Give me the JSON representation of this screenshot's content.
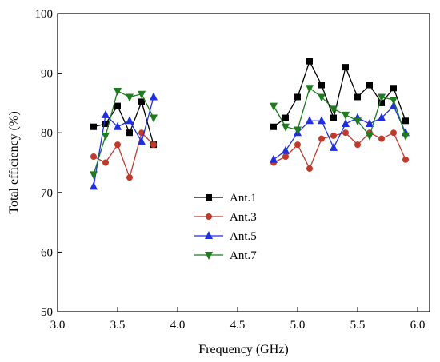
{
  "chart_data": {
    "type": "line",
    "title": "",
    "xlabel": "Frequency (GHz)",
    "ylabel": "Total efficiency (%)",
    "xlim": [
      3.0,
      6.1
    ],
    "ylim": [
      50,
      100
    ],
    "xticks": [
      "3.0",
      "3.5",
      "4.0",
      "4.5",
      "5.0",
      "5.5",
      "6.0"
    ],
    "yticks": [
      "50",
      "60",
      "70",
      "80",
      "90",
      "100"
    ],
    "grid": false,
    "legend_position": "center",
    "series": [
      {
        "name": "Ant.1",
        "color": "#000000",
        "marker": "square",
        "segments": [
          {
            "x": [
              3.3,
              3.4,
              3.5,
              3.6,
              3.7,
              3.8
            ],
            "y": [
              81.0,
              81.5,
              84.5,
              80.0,
              85.2,
              78.0
            ]
          },
          {
            "x": [
              4.8,
              4.9,
              5.0,
              5.1,
              5.2,
              5.3,
              5.4,
              5.5,
              5.6,
              5.7,
              5.8,
              5.9
            ],
            "y": [
              81.0,
              82.5,
              86.0,
              92.0,
              88.0,
              82.5,
              91.0,
              86.0,
              88.0,
              85.0,
              87.5,
              82.0
            ]
          }
        ]
      },
      {
        "name": "Ant.3",
        "color": "#c0392b",
        "marker": "circle",
        "segments": [
          {
            "x": [
              3.3,
              3.4,
              3.5,
              3.6,
              3.7,
              3.8
            ],
            "y": [
              76.0,
              75.0,
              78.0,
              72.5,
              80.0,
              78.0
            ]
          },
          {
            "x": [
              4.8,
              4.9,
              5.0,
              5.1,
              5.2,
              5.3,
              5.4,
              5.5,
              5.6,
              5.7,
              5.8,
              5.9
            ],
            "y": [
              75.0,
              76.0,
              78.0,
              74.0,
              79.0,
              79.5,
              80.0,
              78.0,
              80.0,
              79.0,
              80.0,
              75.5
            ]
          }
        ]
      },
      {
        "name": "Ant.5",
        "color": "#1f2fe0",
        "marker": "triangle-up",
        "segments": [
          {
            "x": [
              3.3,
              3.4,
              3.5,
              3.6,
              3.7,
              3.8
            ],
            "y": [
              71.0,
              83.0,
              81.0,
              82.0,
              78.5,
              86.0
            ]
          },
          {
            "x": [
              4.8,
              4.9,
              5.0,
              5.1,
              5.2,
              5.3,
              5.4,
              5.5,
              5.6,
              5.7,
              5.8,
              5.9
            ],
            "y": [
              75.5,
              77.0,
              80.0,
              82.0,
              82.0,
              77.5,
              81.5,
              82.5,
              81.5,
              82.5,
              84.5,
              80.0
            ]
          }
        ]
      },
      {
        "name": "Ant.7",
        "color": "#1e7b1e",
        "marker": "triangle-down",
        "segments": [
          {
            "x": [
              3.3,
              3.4,
              3.5,
              3.6,
              3.7,
              3.8
            ],
            "y": [
              73.0,
              79.5,
              87.0,
              86.0,
              86.5,
              82.5
            ]
          },
          {
            "x": [
              4.8,
              4.9,
              5.0,
              5.1,
              5.2,
              5.3,
              5.4,
              5.5,
              5.6,
              5.7,
              5.8,
              5.9
            ],
            "y": [
              84.5,
              81.0,
              80.5,
              87.5,
              86.0,
              84.0,
              83.0,
              82.0,
              79.5,
              86.0,
              85.5,
              79.5
            ]
          }
        ]
      }
    ]
  }
}
